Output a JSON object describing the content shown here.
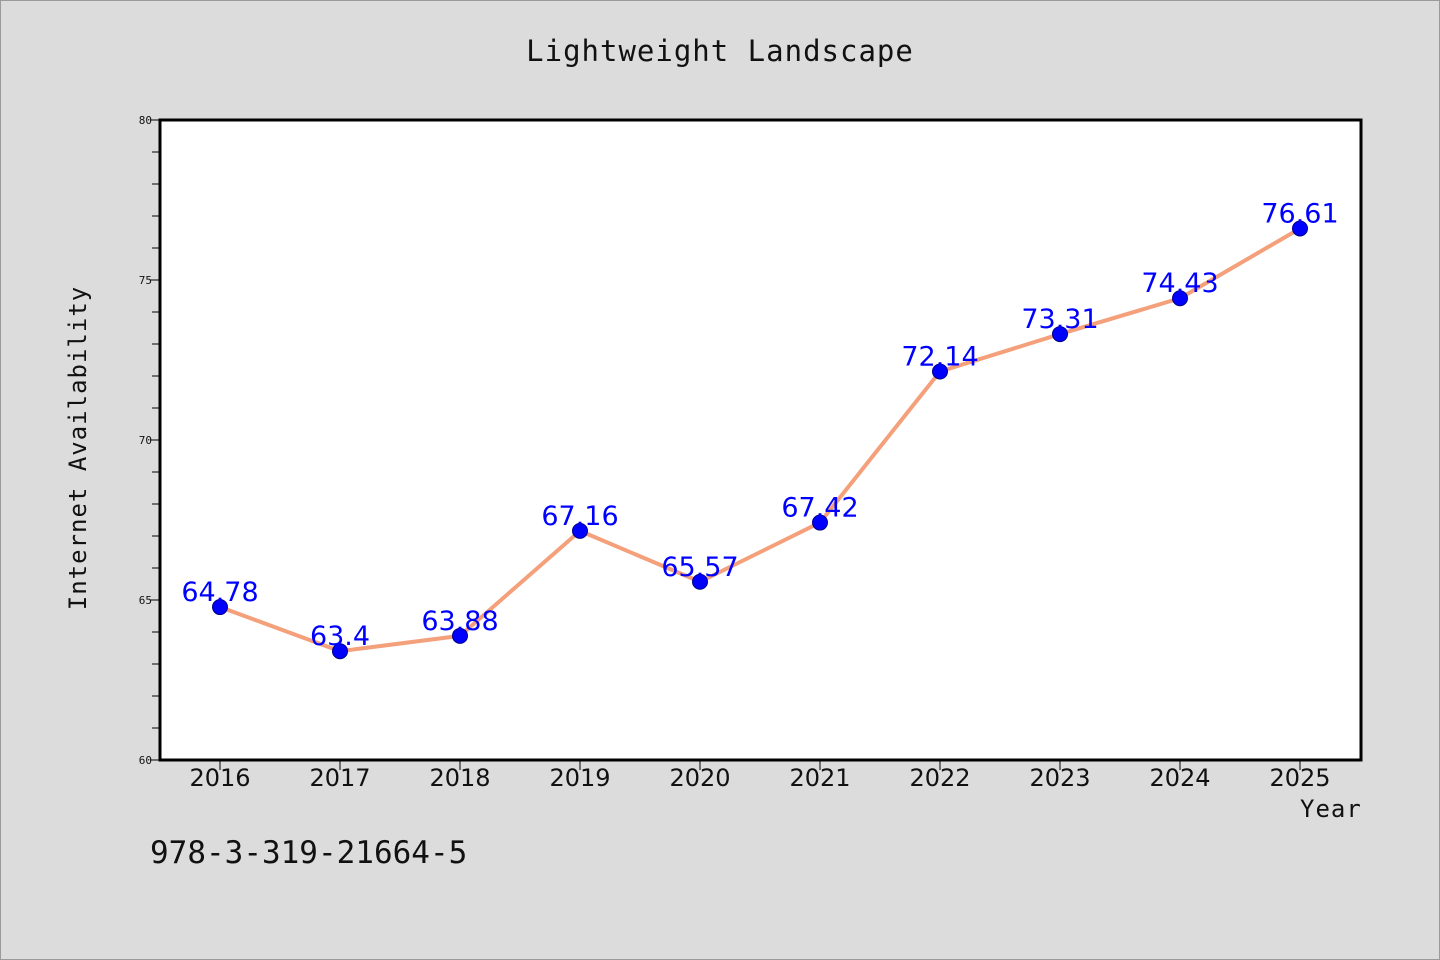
{
  "chart_data": {
    "type": "line",
    "title": "Lightweight Landscape",
    "xlabel": "Year",
    "ylabel": "Internet Availability",
    "x": [
      "2016",
      "2017",
      "2018",
      "2019",
      "2020",
      "2021",
      "2022",
      "2023",
      "2024",
      "2025"
    ],
    "series": [
      {
        "values": [
          64.78,
          63.4,
          63.88,
          67.16,
          65.57,
          67.42,
          72.14,
          73.31,
          74.43,
          76.61
        ],
        "data_labels": [
          "64.78",
          "63.4",
          "63.88",
          "67.16",
          "65.57",
          "67.42",
          "72.14",
          "73.31",
          "74.43",
          "76.61"
        ]
      }
    ],
    "ylim": [
      60,
      80
    ],
    "y_ticks": [
      60,
      65,
      70,
      75,
      80
    ],
    "y_tick_labels": [
      "60",
      "65",
      "70",
      "75",
      "80"
    ],
    "grid": false,
    "legend": "none",
    "colors": {
      "line": "#f4a07a",
      "marker": "#0000ff",
      "data_label": "#0000ff",
      "background": "#dcdcdc",
      "plot_background": "#ffffff"
    }
  },
  "footer": {
    "isbn": "978-3-319-21664-5"
  }
}
